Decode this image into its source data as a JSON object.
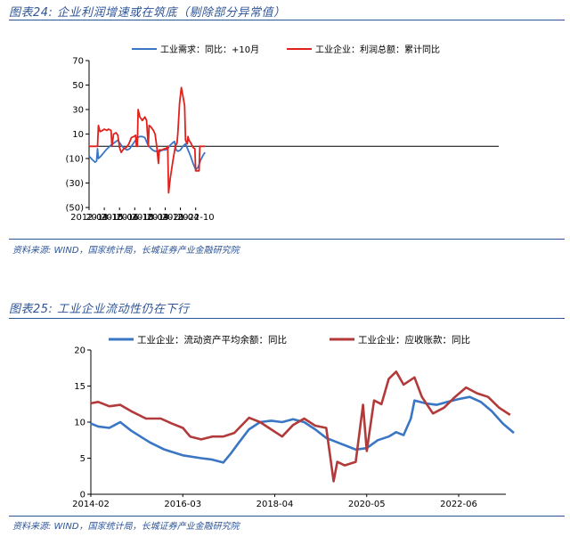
{
  "figure1": {
    "title": "图表24:  企业利润增速或在筑底（剔除部分异常值）",
    "source": "资料来源:  WIND，国家统计局，长城证券产业金融研究院"
  },
  "figure2": {
    "title": "图表25:  工业企业流动性仍在下行",
    "source": "资料来源:  WIND，国家统计局，长城证券产业金融研究院"
  },
  "colors": {
    "blue": "#3a76c4",
    "red": "#e0221c",
    "darkred": "#b23a3a",
    "accent": "#2e5597"
  },
  "chart_data": [
    {
      "type": "line",
      "title": "",
      "xlabel": "",
      "ylabel": "",
      "ylim": [
        -50,
        70
      ],
      "yticks": [
        "70",
        "50",
        "30",
        "10",
        "(10)",
        "(30)",
        "(50)"
      ],
      "xticks": [
        "2012-04",
        "2013-10",
        "2015-04",
        "2016-10",
        "2018-04",
        "2019-10",
        "2021-04",
        "2022-10"
      ],
      "legend_position": "top",
      "series": [
        {
          "name": "工业需求：同比：+10月",
          "color": "#3a76c4",
          "points": [
            [
              "2012-04",
              -8
            ],
            [
              "2012-08",
              -11
            ],
            [
              "2012-11",
              -13
            ],
            [
              "2013-01",
              -12
            ],
            [
              "2013-02",
              -2
            ],
            [
              "2013-03",
              -10
            ],
            [
              "2013-06",
              -8
            ],
            [
              "2013-12",
              -3
            ],
            [
              "2014-06",
              1
            ],
            [
              "2014-12",
              4
            ],
            [
              "2015-02",
              5
            ],
            [
              "2015-04",
              3
            ],
            [
              "2015-07",
              0
            ],
            [
              "2015-10",
              -2
            ],
            [
              "2016-01",
              -3
            ],
            [
              "2016-04",
              -2
            ],
            [
              "2016-07",
              1
            ],
            [
              "2016-10",
              4
            ],
            [
              "2017-01",
              7
            ],
            [
              "2017-04",
              8
            ],
            [
              "2017-07",
              8
            ],
            [
              "2017-10",
              7
            ],
            [
              "2018-01",
              2
            ],
            [
              "2018-04",
              -1
            ],
            [
              "2018-07",
              -3
            ],
            [
              "2018-10",
              -4
            ],
            [
              "2019-01",
              -4
            ],
            [
              "2019-04",
              -4
            ],
            [
              "2019-07",
              -3
            ],
            [
              "2019-10",
              -3
            ],
            [
              "2020-01",
              -2
            ],
            [
              "2020-04",
              1
            ],
            [
              "2020-07",
              3
            ],
            [
              "2020-09",
              4
            ],
            [
              "2020-11",
              -3
            ],
            [
              "2021-01",
              -4
            ],
            [
              "2021-04",
              -3
            ],
            [
              "2021-07",
              0
            ],
            [
              "2021-10",
              2
            ],
            [
              "2022-01",
              -3
            ],
            [
              "2022-04",
              -8
            ],
            [
              "2022-07",
              -14
            ],
            [
              "2022-10",
              -19
            ],
            [
              "2023-01",
              -17
            ],
            [
              "2023-04",
              -11
            ],
            [
              "2023-07",
              -7
            ],
            [
              "2023-09",
              -5
            ]
          ]
        },
        {
          "name": "工业企业：利润总额：累计同比",
          "color": "#e0221c",
          "points": [
            [
              "2012-04",
              0
            ],
            [
              "2012-08",
              0
            ],
            [
              "2012-12",
              0
            ],
            [
              "2013-02",
              0
            ],
            [
              "2013-03",
              17
            ],
            [
              "2013-05",
              12
            ],
            [
              "2013-08",
              13
            ],
            [
              "2013-10",
              14
            ],
            [
              "2014-01",
              13
            ],
            [
              "2014-03",
              14
            ],
            [
              "2014-06",
              13
            ],
            [
              "2014-07",
              0
            ],
            [
              "2014-09",
              10
            ],
            [
              "2014-12",
              11
            ],
            [
              "2015-02",
              9
            ],
            [
              "2015-04",
              -1
            ],
            [
              "2015-06",
              -5
            ],
            [
              "2015-09",
              -2
            ],
            [
              "2015-12",
              -1
            ],
            [
              "2016-03",
              2
            ],
            [
              "2016-06",
              7
            ],
            [
              "2016-09",
              8
            ],
            [
              "2016-11",
              9
            ],
            [
              "2016-12",
              0
            ],
            [
              "2017-01",
              0
            ],
            [
              "2017-02",
              30
            ],
            [
              "2017-04",
              24
            ],
            [
              "2017-07",
              21
            ],
            [
              "2017-10",
              24
            ],
            [
              "2017-12",
              21
            ],
            [
              "2018-02",
              0
            ],
            [
              "2018-03",
              17
            ],
            [
              "2018-05",
              16
            ],
            [
              "2018-08",
              13
            ],
            [
              "2018-10",
              10
            ],
            [
              "2018-12",
              0
            ],
            [
              "2019-02",
              -14
            ],
            [
              "2019-03",
              -3
            ],
            [
              "2019-06",
              -3
            ],
            [
              "2019-09",
              -2
            ],
            [
              "2019-11",
              -2
            ],
            [
              "2020-01",
              0
            ],
            [
              "2020-02",
              -38
            ],
            [
              "2020-04",
              -26
            ],
            [
              "2020-07",
              -12
            ],
            [
              "2020-10",
              0
            ],
            [
              "2020-12",
              3
            ],
            [
              "2021-01",
              12
            ],
            [
              "2021-03",
              35
            ],
            [
              "2021-05",
              48
            ],
            [
              "2021-08",
              37
            ],
            [
              "2021-09",
              33
            ],
            [
              "2021-10",
              5
            ],
            [
              "2021-12",
              2
            ],
            [
              "2022-01",
              8
            ],
            [
              "2022-02",
              5
            ],
            [
              "2022-04",
              3
            ],
            [
              "2022-07",
              -1
            ],
            [
              "2022-09",
              -2
            ],
            [
              "2022-10",
              -20
            ],
            [
              "2022-12",
              -20
            ],
            [
              "2023-02",
              -20
            ],
            [
              "2023-03",
              0
            ],
            [
              "2023-09",
              0
            ]
          ]
        }
      ]
    },
    {
      "type": "line",
      "title": "",
      "xlabel": "",
      "ylabel": "",
      "ylim": [
        0,
        20
      ],
      "yticks": [
        "20",
        "15",
        "10",
        "5",
        "0"
      ],
      "xticks": [
        "2014-02",
        "2016-03",
        "2018-04",
        "2020-05",
        "2022-06"
      ],
      "legend_position": "top",
      "series": [
        {
          "name": "工业企业：流动资产平均余额：同比",
          "color": "#3a76c4",
          "points": [
            [
              "2014-02",
              9.8
            ],
            [
              "2014-04",
              9.4
            ],
            [
              "2014-07",
              9.2
            ],
            [
              "2014-10",
              10
            ],
            [
              "2015-01",
              8.8
            ],
            [
              "2015-06",
              7.2
            ],
            [
              "2015-10",
              6.2
            ],
            [
              "2016-03",
              5.4
            ],
            [
              "2016-08",
              5.0
            ],
            [
              "2016-11",
              4.8
            ],
            [
              "2017-02",
              4.4
            ],
            [
              "2017-04",
              5.6
            ],
            [
              "2017-06",
              7
            ],
            [
              "2017-09",
              9
            ],
            [
              "2017-12",
              10
            ],
            [
              "2018-03",
              10.2
            ],
            [
              "2018-06",
              10
            ],
            [
              "2018-09",
              10.4
            ],
            [
              "2018-12",
              10
            ],
            [
              "2019-03",
              9
            ],
            [
              "2019-06",
              7.8
            ],
            [
              "2019-09",
              7.2
            ],
            [
              "2019-12",
              6.6
            ],
            [
              "2020-02",
              6.2
            ],
            [
              "2020-05",
              6.4
            ],
            [
              "2020-08",
              7.5
            ],
            [
              "2020-11",
              8
            ],
            [
              "2021-01",
              8.6
            ],
            [
              "2021-03",
              8.2
            ],
            [
              "2021-05",
              10.5
            ],
            [
              "2021-06",
              13
            ],
            [
              "2021-09",
              12.6
            ],
            [
              "2021-12",
              12.4
            ],
            [
              "2022-03",
              12.8
            ],
            [
              "2022-06",
              13.2
            ],
            [
              "2022-09",
              13.5
            ],
            [
              "2022-12",
              12.8
            ],
            [
              "2023-03",
              11.5
            ],
            [
              "2023-06",
              9.8
            ],
            [
              "2023-09",
              8.5
            ]
          ]
        },
        {
          "name": "工业企业：应收账款：同比",
          "color": "#b23a3a",
          "points": [
            [
              "2014-02",
              12.6
            ],
            [
              "2014-04",
              12.8
            ],
            [
              "2014-07",
              12.2
            ],
            [
              "2014-10",
              12.4
            ],
            [
              "2015-01",
              11.5
            ],
            [
              "2015-05",
              10.5
            ],
            [
              "2015-09",
              10.5
            ],
            [
              "2015-12",
              9.8
            ],
            [
              "2016-03",
              9.2
            ],
            [
              "2016-05",
              8
            ],
            [
              "2016-08",
              7.6
            ],
            [
              "2016-11",
              8
            ],
            [
              "2017-02",
              8
            ],
            [
              "2017-05",
              8.5
            ],
            [
              "2017-09",
              10.6
            ],
            [
              "2017-12",
              10
            ],
            [
              "2018-03",
              9
            ],
            [
              "2018-06",
              8
            ],
            [
              "2018-09",
              9.6
            ],
            [
              "2018-12",
              10.5
            ],
            [
              "2019-03",
              9.5
            ],
            [
              "2019-06",
              9.2
            ],
            [
              "2019-08",
              1.8
            ],
            [
              "2019-09",
              4.5
            ],
            [
              "2019-11",
              4
            ],
            [
              "2020-02",
              4.5
            ],
            [
              "2020-04",
              12.4
            ],
            [
              "2020-05",
              6
            ],
            [
              "2020-07",
              13
            ],
            [
              "2020-09",
              12.5
            ],
            [
              "2020-11",
              16
            ],
            [
              "2021-01",
              17
            ],
            [
              "2021-03",
              15.2
            ],
            [
              "2021-06",
              16.2
            ],
            [
              "2021-08",
              13.5
            ],
            [
              "2021-11",
              11.2
            ],
            [
              "2022-02",
              12
            ],
            [
              "2022-05",
              13.5
            ],
            [
              "2022-08",
              14.8
            ],
            [
              "2022-11",
              14
            ],
            [
              "2023-02",
              13.5
            ],
            [
              "2023-05",
              12
            ],
            [
              "2023-08",
              11
            ]
          ]
        }
      ]
    }
  ]
}
